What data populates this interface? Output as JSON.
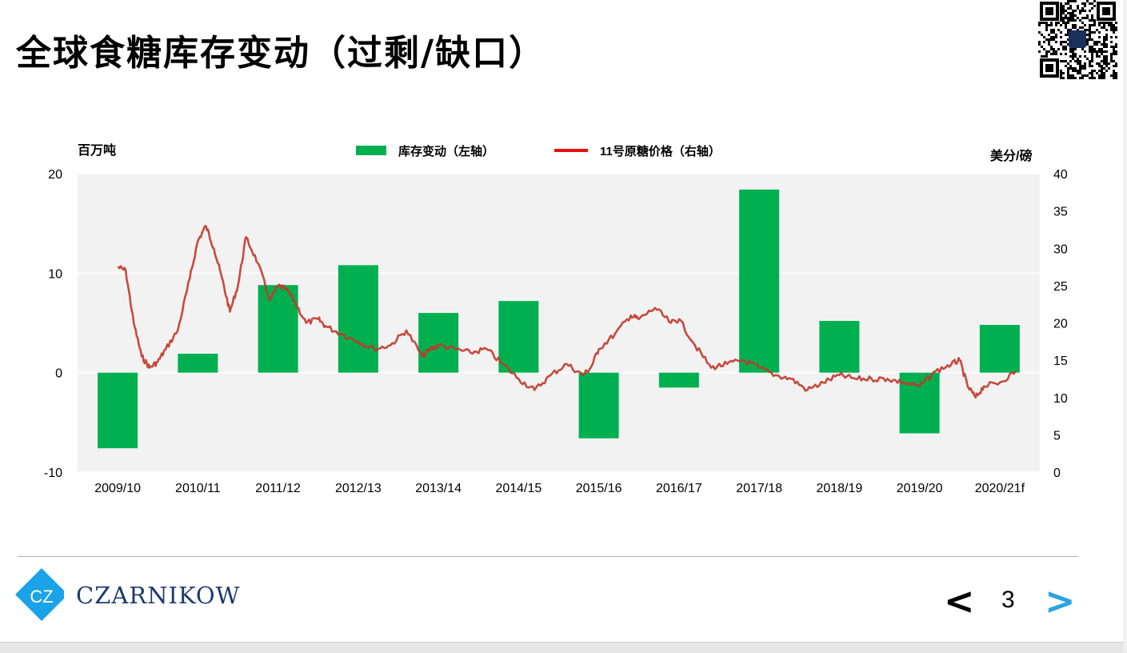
{
  "slide": {
    "title": "全球食糖库存变动（过剩/缺口）",
    "page_number": "3",
    "prev_label": "<",
    "next_label": ">",
    "logo_text": "CZARNIKOW",
    "logo_initials": "CZ",
    "colors": {
      "bar": "#00b050",
      "line": "#c0392b",
      "plot_bg": "#f2f2f2",
      "logo": "#1e3a6e",
      "next_arrow": "#2aa4e0"
    }
  },
  "chart_data": {
    "type": "bar",
    "left_unit": "百万吨",
    "right_unit": "美分/磅",
    "legend": [
      {
        "name": "库存变动（左轴）",
        "color": "#00b050",
        "kind": "bar"
      },
      {
        "name": "11号原糖价格（右轴）",
        "color": "#e3120b",
        "kind": "line"
      }
    ],
    "legend_position": "top-center",
    "grid": true,
    "categories": [
      "2009/10",
      "2010/11",
      "2011/12",
      "2012/13",
      "2013/14",
      "2014/15",
      "2015/16",
      "2016/17",
      "2017/18",
      "2018/19",
      "2019/20",
      "2020/21f"
    ],
    "series": [
      {
        "name": "库存变动（左轴）",
        "axis": "left",
        "values": [
          -7.6,
          1.9,
          8.8,
          10.8,
          6.0,
          7.2,
          -6.6,
          -1.5,
          18.4,
          5.2,
          -6.1,
          4.8
        ]
      },
      {
        "name": "11号原糖价格（右轴）",
        "axis": "right",
        "x": [
          0.0,
          0.1,
          0.2,
          0.3,
          0.4,
          0.5,
          0.6,
          0.75,
          0.9,
          1.0,
          1.1,
          1.2,
          1.3,
          1.4,
          1.5,
          1.6,
          1.75,
          1.9,
          2.0,
          2.1,
          2.2,
          2.35,
          2.5,
          2.6,
          2.8,
          3.0,
          3.2,
          3.4,
          3.6,
          3.8,
          3.9,
          4.0,
          4.2,
          4.4,
          4.6,
          4.8,
          5.0,
          5.2,
          5.4,
          5.6,
          5.8,
          5.9,
          6.0,
          6.2,
          6.4,
          6.5,
          6.7,
          6.9,
          7.0,
          7.2,
          7.4,
          7.6,
          7.8,
          8.0,
          8.2,
          8.4,
          8.6,
          8.8,
          9.0,
          9.2,
          9.4,
          9.6,
          9.8,
          10.0,
          10.2,
          10.4,
          10.5,
          10.6,
          10.7,
          10.8,
          11.0,
          11.2
        ],
        "values": [
          27.5,
          27.0,
          20.0,
          15.5,
          14.0,
          14.8,
          16.5,
          19.0,
          26.0,
          31.0,
          33.0,
          30.0,
          26.0,
          21.5,
          25.0,
          31.5,
          28.0,
          23.0,
          25.0,
          24.5,
          23.0,
          20.0,
          20.5,
          19.5,
          18.5,
          17.5,
          16.5,
          17.0,
          19.0,
          15.5,
          16.5,
          17.0,
          16.5,
          16.0,
          16.5,
          14.5,
          12.5,
          11.0,
          13.0,
          14.5,
          13.0,
          14.0,
          16.5,
          18.5,
          21.0,
          20.5,
          22.0,
          20.0,
          20.5,
          17.0,
          14.0,
          14.5,
          15.0,
          14.0,
          13.0,
          12.5,
          11.0,
          12.0,
          13.0,
          12.5,
          12.5,
          12.5,
          12.0,
          11.5,
          13.5,
          14.5,
          15.0,
          11.5,
          10.0,
          11.5,
          12.0,
          13.5
        ]
      }
    ],
    "left_axis": {
      "min": -10,
      "max": 20,
      "ticks": [
        -10,
        0,
        10,
        20
      ]
    },
    "right_axis": {
      "min": 0,
      "max": 40,
      "ticks": [
        0,
        5,
        10,
        15,
        20,
        25,
        30,
        35,
        40
      ]
    }
  }
}
